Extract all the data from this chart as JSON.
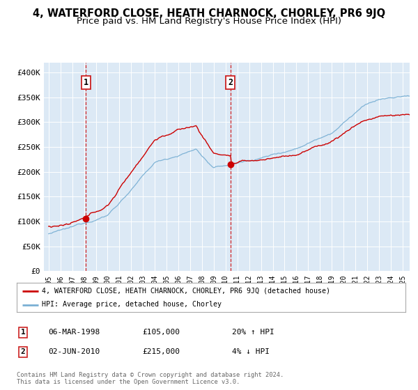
{
  "title": "4, WATERFORD CLOSE, HEATH CHARNOCK, CHORLEY, PR6 9JQ",
  "subtitle": "Price paid vs. HM Land Registry's House Price Index (HPI)",
  "ylabel_ticks": [
    "£0",
    "£50K",
    "£100K",
    "£150K",
    "£200K",
    "£250K",
    "£300K",
    "£350K",
    "£400K"
  ],
  "ytick_values": [
    0,
    50000,
    100000,
    150000,
    200000,
    250000,
    300000,
    350000,
    400000
  ],
  "ylim": [
    0,
    420000
  ],
  "xlim_start": 1994.6,
  "xlim_end": 2025.6,
  "sale1_year": 1998.17,
  "sale1_price": 105000,
  "sale1_label": "1",
  "sale1_date": "06-MAR-1998",
  "sale1_hpi_pct": "20% ↑ HPI",
  "sale2_year": 2010.42,
  "sale2_price": 215000,
  "sale2_label": "2",
  "sale2_date": "02-JUN-2010",
  "sale2_hpi_pct": "4% ↓ HPI",
  "legend_property": "4, WATERFORD CLOSE, HEATH CHARNOCK, CHORLEY, PR6 9JQ (detached house)",
  "legend_hpi": "HPI: Average price, detached house, Chorley",
  "red_line_color": "#cc0000",
  "blue_line_color": "#7ab0d4",
  "plot_bg_color": "#dce9f5",
  "grid_color": "#ffffff",
  "footer": "Contains HM Land Registry data © Crown copyright and database right 2024.\nThis data is licensed under the Open Government Licence v3.0.",
  "title_fontsize": 10.5,
  "subtitle_fontsize": 9.5,
  "seed": 12345
}
